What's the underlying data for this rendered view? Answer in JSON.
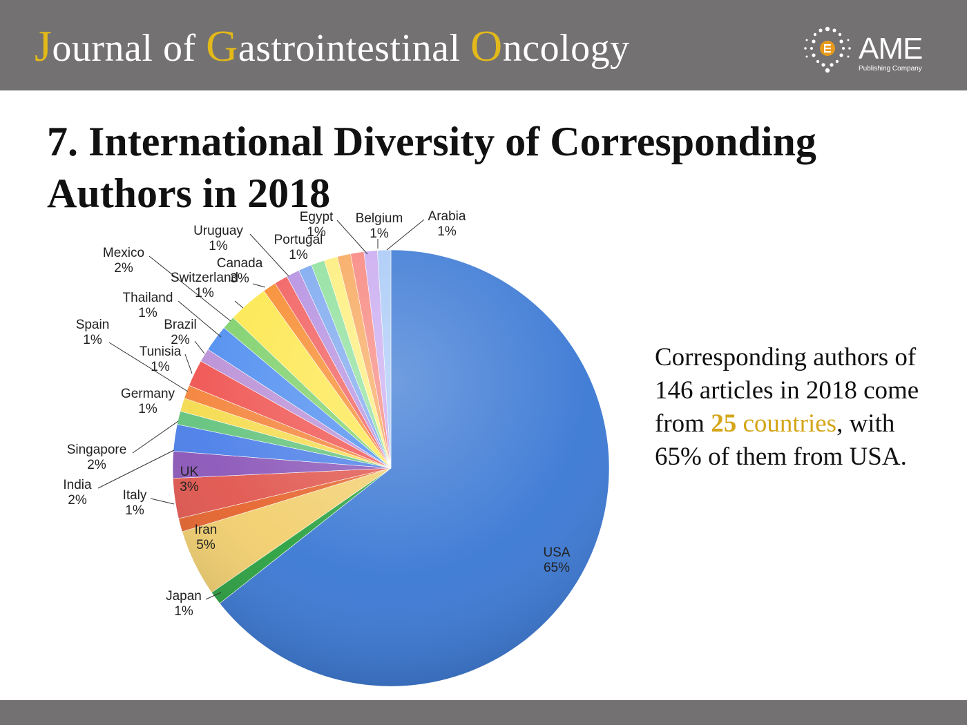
{
  "header": {
    "journal_title": {
      "parts": [
        {
          "text": "J",
          "accent": true
        },
        {
          "text": "ournal of ",
          "accent": false
        },
        {
          "text": "G",
          "accent": true
        },
        {
          "text": "astrointestinal ",
          "accent": false
        },
        {
          "text": "O",
          "accent": true
        },
        {
          "text": "ncology",
          "accent": false
        }
      ]
    },
    "logo": {
      "name": "AME",
      "subtitle": "Publishing Company",
      "icon": "ame-dots-logo-icon"
    }
  },
  "slide": {
    "title_line1": "7. International Diversity of Corresponding",
    "title_line2": "Authors in 2018"
  },
  "summary": {
    "line1": "Corresponding authors of",
    "line2": "146 articles in 2018 come",
    "line3_pre": "from ",
    "line3_num": "25",
    "line3_word": " countries",
    "line3_post": ", with",
    "line4": "65% of them from USA."
  },
  "colors": {
    "header_bg": "#737171",
    "accent": "#e3b91a",
    "highlight": "#d4a518"
  },
  "chart_data": {
    "type": "pie",
    "title": "",
    "start": "top, clockwise",
    "slices": [
      {
        "label": "USA",
        "pct": "65%",
        "value": 65,
        "color": "#3a78d4"
      },
      {
        "label": "Japan",
        "pct": "1%",
        "value": 1,
        "color": "#2aa140"
      },
      {
        "label": "Iran",
        "pct": "5%",
        "value": 5,
        "color": "#f2cf6e"
      },
      {
        "label": "Italy",
        "pct": "1%",
        "value": 1,
        "color": "#e5632c"
      },
      {
        "label": "UK",
        "pct": "3%",
        "value": 3,
        "color": "#e0554d"
      },
      {
        "label": "India",
        "pct": "2%",
        "value": 2,
        "color": "#8a55b8"
      },
      {
        "label": "Singapore",
        "pct": "2%",
        "value": 2,
        "color": "#4a7ee8"
      },
      {
        "label": "Germany",
        "pct": "1%",
        "value": 1,
        "color": "#63c37c"
      },
      {
        "label": "Spain",
        "pct": "1%",
        "value": 1,
        "color": "#f5db4e"
      },
      {
        "label": "Tunisia",
        "pct": "1%",
        "value": 1,
        "color": "#f4833a"
      },
      {
        "label": "Brazil",
        "pct": "2%",
        "value": 2,
        "color": "#ef5350"
      },
      {
        "label": "Thailand",
        "pct": "1%",
        "value": 1,
        "color": "#b98fd6"
      },
      {
        "label": "Mexico",
        "pct": "2%",
        "value": 2,
        "color": "#4e8df0"
      },
      {
        "label": "Switzerland",
        "pct": "1%",
        "value": 1,
        "color": "#7dd06a"
      },
      {
        "label": "Canada",
        "pct": "3%",
        "value": 3,
        "color": "#fde74c"
      },
      {
        "label": "Uruguay",
        "pct": "1%",
        "value": 1,
        "color": "#f78a2c"
      },
      {
        "label": "Portugal",
        "pct": "1%",
        "value": 1,
        "color": "#f15c5c"
      },
      {
        "label": "Egypt",
        "pct": "1%",
        "value": 1,
        "color": "#b48ee0"
      },
      {
        "label": "Belgium",
        "pct": "1%",
        "value": 1,
        "color": "#7ba7ef"
      },
      {
        "label": "Arabia",
        "pct": "1%",
        "value": 1,
        "color": "#8ee09c"
      },
      {
        "label": "",
        "pct": "",
        "value": 1,
        "color": "#fdee7a"
      },
      {
        "label": "",
        "pct": "",
        "value": 1,
        "color": "#f7a75c"
      },
      {
        "label": "",
        "pct": "",
        "value": 1,
        "color": "#f7857d"
      },
      {
        "label": "",
        "pct": "",
        "value": 1,
        "color": "#c9aaf0"
      },
      {
        "label": "",
        "pct": "",
        "value": 1,
        "color": "#a9c9f7"
      }
    ]
  }
}
